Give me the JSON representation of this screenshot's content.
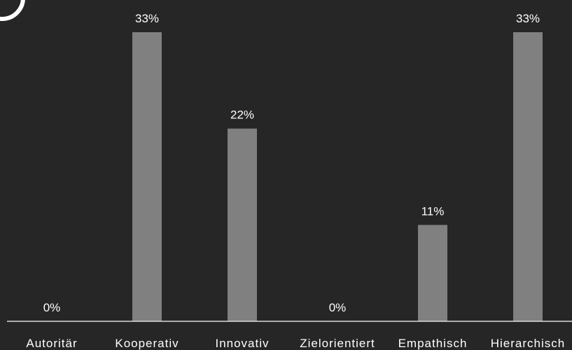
{
  "chart_data": {
    "type": "bar",
    "categories": [
      "Autoritär",
      "Kooperativ",
      "Innovativ",
      "Zielorientiert",
      "Empathisch",
      "Hierarchisch"
    ],
    "values": [
      0,
      33,
      22,
      0,
      11,
      33
    ],
    "data_labels": [
      "0%",
      "33%",
      "22%",
      "0%",
      "11%",
      "33%"
    ],
    "title": "",
    "xlabel": "",
    "ylabel": "",
    "ylim": [
      0,
      33
    ],
    "grid": false,
    "legend": "none",
    "bar_color": "#808080",
    "background_color": "#262626",
    "text_color": "#ffffff",
    "axis_color": "#d9d9d9"
  }
}
